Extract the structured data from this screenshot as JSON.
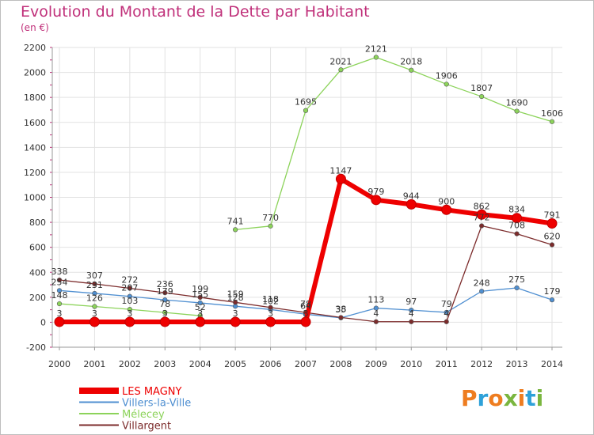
{
  "header": {
    "title": "Evolution du Montant de la Dette par Habitant",
    "unit": "(en €)"
  },
  "logo": {
    "text": "Proxiti",
    "colors": [
      "#ee7d20",
      "#2ea1d9",
      "#ee7d20",
      "#7ab63f",
      "#ee7d20",
      "#2ea1d9",
      "#7ab63f"
    ]
  },
  "chart_data": {
    "type": "line",
    "title": "Evolution du Montant de la Dette par Habitant",
    "subtitle": "(en €)",
    "categories": [
      "2000",
      "2001",
      "2002",
      "2003",
      "2004",
      "2005",
      "2006",
      "2007",
      "2008",
      "2009",
      "2010",
      "2011",
      "2012",
      "2013",
      "2014"
    ],
    "ylim": [
      -200,
      2200
    ],
    "yticks": [
      -200,
      0,
      200,
      400,
      600,
      800,
      1000,
      1200,
      1400,
      1600,
      1800,
      2000,
      2200
    ],
    "grid": true,
    "legend_position": "bottom-left",
    "series": [
      {
        "name": "Villers-la-Ville",
        "color": "#4f8fd1",
        "values": [
          254,
          231,
          207,
          179,
          155,
          128,
          102,
          64,
          35,
          113,
          97,
          79,
          248,
          275,
          179
        ]
      },
      {
        "name": "Mélecey",
        "color": "#8cd35a",
        "values": [
          148,
          126,
          103,
          78,
          52,
          null,
          null,
          null,
          null,
          null,
          null,
          null,
          null,
          null,
          null
        ]
      },
      {
        "name": "Mélecey",
        "color": "#8cd35a",
        "values": [
          null,
          null,
          null,
          null,
          null,
          741,
          770,
          1695,
          2021,
          2121,
          2018,
          1906,
          1807,
          1690,
          1606
        ]
      },
      {
        "name": "Villargent",
        "color": "#7c2b2b",
        "values": [
          338,
          307,
          272,
          236,
          199,
          159,
          118,
          78,
          38,
          4,
          4,
          4,
          772,
          708,
          620
        ]
      },
      {
        "name": "LES MAGNY",
        "color": "#ee0000",
        "values": [
          3,
          3,
          3,
          3,
          3,
          3,
          3,
          3,
          1147,
          979,
          944,
          900,
          862,
          834,
          791
        ]
      }
    ],
    "data_labels": [
      {
        "text": "338",
        "cat": 0,
        "val": 338
      },
      {
        "text": "307",
        "cat": 1,
        "val": 307
      },
      {
        "text": "272",
        "cat": 2,
        "val": 272
      },
      {
        "text": "236",
        "cat": 3,
        "val": 236
      },
      {
        "text": "199",
        "cat": 4,
        "val": 199
      },
      {
        "text": "159",
        "cat": 5,
        "val": 159
      },
      {
        "text": "118",
        "cat": 6,
        "val": 118
      },
      {
        "text": "78",
        "cat": 7,
        "val": 78
      },
      {
        "text": "38",
        "cat": 8,
        "val": 38
      },
      {
        "text": "4",
        "cat": 9,
        "val": 4
      },
      {
        "text": "4",
        "cat": 10,
        "val": 4
      },
      {
        "text": "4",
        "cat": 11,
        "val": 4
      },
      {
        "text": "772",
        "cat": 12,
        "val": 772
      },
      {
        "text": "708",
        "cat": 13,
        "val": 708
      },
      {
        "text": "620",
        "cat": 14,
        "val": 620
      },
      {
        "text": "254",
        "cat": 0,
        "val": 254
      },
      {
        "text": "231",
        "cat": 1,
        "val": 231
      },
      {
        "text": "207",
        "cat": 2,
        "val": 207
      },
      {
        "text": "179",
        "cat": 3,
        "val": 179
      },
      {
        "text": "155",
        "cat": 4,
        "val": 155
      },
      {
        "text": "128",
        "cat": 5,
        "val": 128
      },
      {
        "text": "102",
        "cat": 6,
        "val": 102
      },
      {
        "text": "64",
        "cat": 7,
        "val": 64
      },
      {
        "text": "35",
        "cat": 8,
        "val": 35
      },
      {
        "text": "113",
        "cat": 9,
        "val": 113
      },
      {
        "text": "97",
        "cat": 10,
        "val": 97
      },
      {
        "text": "79",
        "cat": 11,
        "val": 79
      },
      {
        "text": "248",
        "cat": 12,
        "val": 248
      },
      {
        "text": "275",
        "cat": 13,
        "val": 275
      },
      {
        "text": "179",
        "cat": 14,
        "val": 179
      },
      {
        "text": "148",
        "cat": 0,
        "val": 148
      },
      {
        "text": "126",
        "cat": 1,
        "val": 126
      },
      {
        "text": "103",
        "cat": 2,
        "val": 103
      },
      {
        "text": "78",
        "cat": 3,
        "val": 78
      },
      {
        "text": "52",
        "cat": 4,
        "val": 52
      },
      {
        "text": "741",
        "cat": 5,
        "val": 741
      },
      {
        "text": "770",
        "cat": 6,
        "val": 770
      },
      {
        "text": "1695",
        "cat": 7,
        "val": 1695
      },
      {
        "text": "2021",
        "cat": 8,
        "val": 2021
      },
      {
        "text": "2121",
        "cat": 9,
        "val": 2121
      },
      {
        "text": "2018",
        "cat": 10,
        "val": 2018
      },
      {
        "text": "1906",
        "cat": 11,
        "val": 1906
      },
      {
        "text": "1807",
        "cat": 12,
        "val": 1807
      },
      {
        "text": "1690",
        "cat": 13,
        "val": 1690
      },
      {
        "text": "1606",
        "cat": 14,
        "val": 1606
      },
      {
        "text": "3",
        "cat": 0,
        "val": 3
      },
      {
        "text": "3",
        "cat": 1,
        "val": 3
      },
      {
        "text": "3",
        "cat": 2,
        "val": 3
      },
      {
        "text": "3",
        "cat": 3,
        "val": 3
      },
      {
        "text": "3",
        "cat": 4,
        "val": 3
      },
      {
        "text": "3",
        "cat": 5,
        "val": 3
      },
      {
        "text": "3",
        "cat": 6,
        "val": 3
      },
      {
        "text": "3",
        "cat": 7,
        "val": 3
      },
      {
        "text": "1147",
        "cat": 8,
        "val": 1147
      },
      {
        "text": "979",
        "cat": 9,
        "val": 979
      },
      {
        "text": "944",
        "cat": 10,
        "val": 944
      },
      {
        "text": "900",
        "cat": 11,
        "val": 900
      },
      {
        "text": "862",
        "cat": 12,
        "val": 862
      },
      {
        "text": "834",
        "cat": 13,
        "val": 834
      },
      {
        "text": "791",
        "cat": 14,
        "val": 791
      }
    ],
    "legend": [
      {
        "label": "LES MAGNY",
        "color": "#ee0000"
      },
      {
        "label": "Villers-la-Ville",
        "color": "#4f8fd1"
      },
      {
        "label": "Mélecey",
        "color": "#8cd35a"
      },
      {
        "label": "Villargent",
        "color": "#7c2b2b"
      }
    ]
  }
}
